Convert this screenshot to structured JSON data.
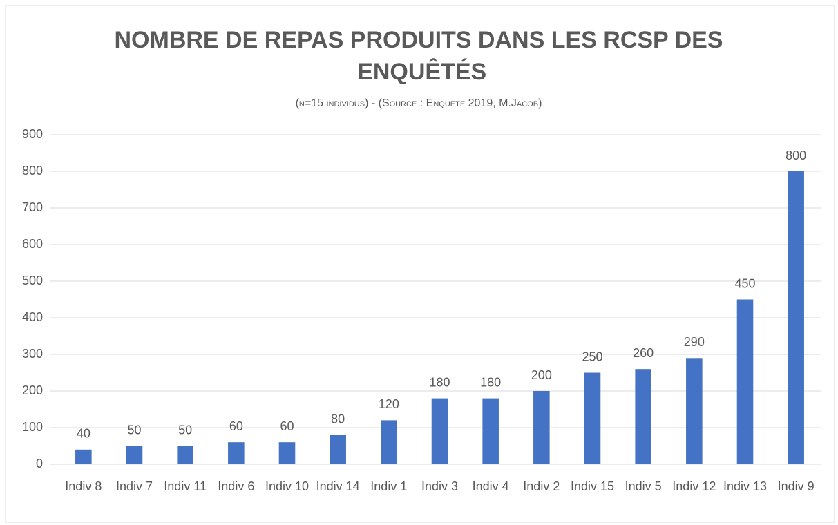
{
  "chart_data": {
    "type": "bar",
    "title": "NOMBRE DE REPAS PRODUITS DANS LES RCSP DES ENQUÊTÉS",
    "subtitle": "(n=15 individus) - (Source : Enquete 2019, M.Jacob)",
    "categories": [
      "Indiv 8",
      "Indiv 7",
      "Indiv 11",
      "Indiv 6",
      "Indiv 10",
      "Indiv 14",
      "Indiv 1",
      "Indiv 3",
      "Indiv 4",
      "Indiv 2",
      "Indiv 15",
      "Indiv 5",
      "Indiv 12",
      "Indiv 13",
      "Indiv 9"
    ],
    "values": [
      40,
      50,
      50,
      60,
      60,
      80,
      120,
      180,
      180,
      200,
      250,
      260,
      290,
      450,
      800
    ],
    "color": "#4472c4",
    "ylim": [
      0,
      900
    ],
    "yticks": [
      0,
      100,
      200,
      300,
      400,
      500,
      600,
      700,
      800,
      900
    ],
    "grid": true
  }
}
